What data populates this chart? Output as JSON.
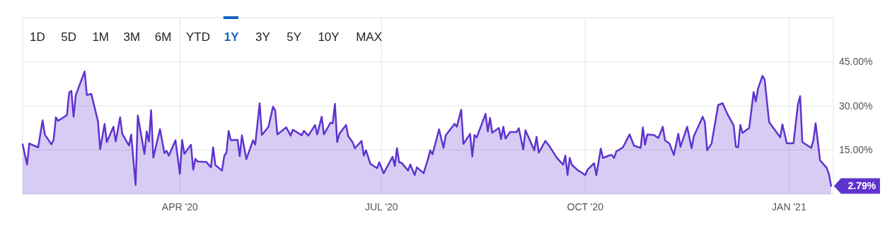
{
  "chart_data": {
    "type": "area",
    "x": [
      "2020-01-21",
      "2020-01-23",
      "2020-01-24",
      "2020-01-28",
      "2020-01-30",
      "2020-01-31",
      "2020-02-03",
      "2020-02-04",
      "2020-02-05",
      "2020-02-06",
      "2020-02-10",
      "2020-02-11",
      "2020-02-12",
      "2020-02-13",
      "2020-02-14",
      "2020-02-18",
      "2020-02-19",
      "2020-02-21",
      "2020-02-24",
      "2020-02-25",
      "2020-02-27",
      "2020-02-28",
      "2020-03-02",
      "2020-03-03",
      "2020-03-05",
      "2020-03-06",
      "2020-03-09",
      "2020-03-10",
      "2020-03-12",
      "2020-03-13",
      "2020-03-16",
      "2020-03-17",
      "2020-03-18",
      "2020-03-19",
      "2020-03-20",
      "2020-03-23",
      "2020-03-25",
      "2020-03-26",
      "2020-03-27",
      "2020-03-30",
      "2020-04-01",
      "2020-04-02",
      "2020-04-03",
      "2020-04-06",
      "2020-04-07",
      "2020-04-08",
      "2020-04-09",
      "2020-04-13",
      "2020-04-15",
      "2020-04-16",
      "2020-04-17",
      "2020-04-20",
      "2020-04-21",
      "2020-04-22",
      "2020-04-23",
      "2020-04-24",
      "2020-04-27",
      "2020-04-28",
      "2020-04-29",
      "2020-05-01",
      "2020-05-04",
      "2020-05-05",
      "2020-05-07",
      "2020-05-08",
      "2020-05-11",
      "2020-05-13",
      "2020-05-14",
      "2020-05-15",
      "2020-05-19",
      "2020-05-21",
      "2020-05-22",
      "2020-05-26",
      "2020-05-27",
      "2020-05-29",
      "2020-06-01",
      "2020-06-02",
      "2020-06-04",
      "2020-06-05",
      "2020-06-08",
      "2020-06-09",
      "2020-06-10",
      "2020-06-11",
      "2020-06-12",
      "2020-06-15",
      "2020-06-16",
      "2020-06-18",
      "2020-06-19",
      "2020-06-22",
      "2020-06-23",
      "2020-06-24",
      "2020-06-26",
      "2020-06-29",
      "2020-06-30",
      "2020-07-02",
      "2020-07-06",
      "2020-07-07",
      "2020-07-08",
      "2020-07-09",
      "2020-07-10",
      "2020-07-13",
      "2020-07-14",
      "2020-07-16",
      "2020-07-17",
      "2020-07-20",
      "2020-07-22",
      "2020-07-23",
      "2020-07-24",
      "2020-07-27",
      "2020-07-29",
      "2020-07-30",
      "2020-08-03",
      "2020-08-04",
      "2020-08-06",
      "2020-08-07",
      "2020-08-10",
      "2020-08-11",
      "2020-08-12",
      "2020-08-13",
      "2020-08-17",
      "2020-08-18",
      "2020-08-19",
      "2020-08-20",
      "2020-08-23",
      "2020-08-24",
      "2020-08-25",
      "2020-08-26",
      "2020-08-28",
      "2020-08-31",
      "2020-09-01",
      "2020-09-03",
      "2020-09-04",
      "2020-09-08",
      "2020-09-09",
      "2020-09-10",
      "2020-09-13",
      "2020-09-15",
      "2020-09-18",
      "2020-09-21",
      "2020-09-22",
      "2020-09-23",
      "2020-09-24",
      "2020-09-25",
      "2020-09-28",
      "2020-09-29",
      "2020-10-01",
      "2020-10-02",
      "2020-10-05",
      "2020-10-06",
      "2020-10-07",
      "2020-10-08",
      "2020-10-09",
      "2020-10-12",
      "2020-10-13",
      "2020-10-14",
      "2020-10-15",
      "2020-10-18",
      "2020-10-21",
      "2020-10-23",
      "2020-10-26",
      "2020-10-27",
      "2020-10-28",
      "2020-10-29",
      "2020-11-01",
      "2020-11-03",
      "2020-11-05",
      "2020-11-06",
      "2020-11-08",
      "2020-11-10",
      "2020-11-12",
      "2020-11-13",
      "2020-11-16",
      "2020-11-18",
      "2020-11-19",
      "2020-11-23",
      "2020-11-24",
      "2020-11-25",
      "2020-11-27",
      "2020-11-30",
      "2020-12-02",
      "2020-12-04",
      "2020-12-07",
      "2020-12-08",
      "2020-12-09",
      "2020-12-10",
      "2020-12-11",
      "2020-12-14",
      "2020-12-16",
      "2020-12-17",
      "2020-12-18",
      "2020-12-20",
      "2020-12-21",
      "2020-12-23",
      "2020-12-28",
      "2020-12-29",
      "2020-12-31",
      "2021-01-03",
      "2021-01-05",
      "2021-01-06",
      "2021-01-07",
      "2021-01-11",
      "2021-01-12",
      "2021-01-13",
      "2021-01-15",
      "2021-01-18",
      "2021-01-19",
      "2021-01-20"
    ],
    "series": [
      {
        "color": "#5f33cf",
        "values": [
          16.9,
          10.1,
          17.2,
          15.9,
          25.1,
          20.3,
          16.9,
          18.5,
          26.1,
          24.9,
          26.9,
          34.5,
          35.1,
          26.3,
          33.7,
          41.7,
          33.7,
          34.1,
          24.8,
          15.3,
          23.9,
          17.7,
          22.9,
          17.9,
          26.1,
          20.5,
          16.5,
          20.3,
          3.1,
          26.7,
          13.7,
          21.3,
          17.9,
          28.5,
          12.4,
          22.1,
          14.0,
          14.7,
          13.1,
          18.3,
          6.9,
          18.4,
          13.7,
          16.8,
          8.3,
          12.0,
          11.1,
          10.9,
          9.1,
          15.9,
          9.9,
          8.0,
          12.9,
          14.1,
          21.5,
          18.3,
          18.5,
          12.9,
          20.0,
          11.9,
          18.3,
          16.8,
          30.9,
          20.1,
          22.9,
          29.7,
          28.5,
          20.3,
          22.7,
          19.9,
          21.9,
          20.0,
          21.5,
          19.9,
          23.5,
          20.3,
          26.3,
          20.3,
          24.3,
          24.1,
          30.7,
          17.7,
          20.5,
          23.5,
          19.7,
          17.6,
          15.6,
          18.1,
          13.1,
          14.9,
          10.3,
          8.8,
          10.8,
          7.1,
          12.7,
          9.6,
          15.6,
          10.8,
          10.7,
          8.0,
          10.1,
          6.5,
          9.1,
          7.1,
          11.9,
          14.9,
          13.5,
          22.0,
          15.7,
          20.0,
          23.9,
          22.9,
          28.7,
          17.1,
          20.5,
          12.8,
          20.1,
          19.3,
          27.3,
          21.3,
          25.9,
          20.9,
          22.5,
          18.7,
          22.9,
          18.9,
          21.1,
          21.1,
          22.4,
          15.2,
          21.7,
          14.9,
          19.5,
          14.1,
          18.1,
          16.1,
          12.5,
          10.0,
          13.1,
          6.5,
          12.3,
          9.9,
          7.9,
          7.5,
          6.5,
          8.3,
          10.5,
          6.5,
          10.9,
          15.5,
          12.3,
          13.2,
          13.3,
          12.3,
          14.5,
          15.9,
          20.3,
          16.5,
          15.7,
          22.7,
          16.8,
          20.3,
          20.1,
          19.1,
          22.9,
          18.3,
          17.2,
          13.3,
          20.5,
          16.1,
          22.9,
          15.6,
          19.7,
          26.3,
          24.5,
          14.9,
          17.1,
          30.3,
          30.9,
          27.5,
          23.3,
          16.1,
          15.9,
          23.5,
          20.8,
          22.5,
          34.7,
          31.5,
          35.9,
          40.2,
          38.9,
          24.5,
          19.3,
          23.7,
          17.3,
          17.3,
          30.5,
          33.3,
          17.7,
          15.7,
          18.4,
          24.1,
          11.5,
          8.9,
          6.8,
          2.79
        ]
      }
    ],
    "xlim": [
      "2020-01-21",
      "2021-01-21"
    ],
    "xticks": [
      {
        "value": "2020-04-01",
        "label": "APR '20"
      },
      {
        "value": "2020-07-01",
        "label": "JUL '20"
      },
      {
        "value": "2020-10-01",
        "label": "OCT '20"
      },
      {
        "value": "2021-01-01",
        "label": "JAN '21"
      }
    ],
    "ylim": [
      0,
      60
    ],
    "yticks": [
      {
        "value": 15,
        "label": "15.00%"
      },
      {
        "value": 30,
        "label": "30.00%"
      },
      {
        "value": 45,
        "label": "45.00%"
      }
    ],
    "grid": true,
    "annotations": [
      "1D",
      "5D",
      "1M",
      "3M",
      "6M",
      "YTD",
      "1Y",
      "3Y",
      "5Y",
      "10Y",
      "MAX",
      {
        "text": "2.79%",
        "x": "2021-01-20",
        "y": 2.79
      }
    ]
  }
}
